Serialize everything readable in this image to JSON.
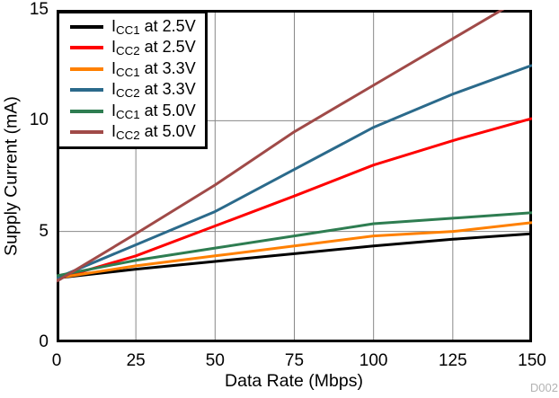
{
  "watermark": "D002",
  "chart_data": {
    "type": "line",
    "title": "",
    "xlabel": "Data Rate (Mbps)",
    "ylabel": "Supply Current (mA)",
    "xlim": [
      0,
      150
    ],
    "ylim": [
      0,
      15
    ],
    "xticks": [
      0,
      25,
      50,
      75,
      100,
      125,
      150
    ],
    "yticks": [
      0,
      5,
      10,
      15
    ],
    "grid": true,
    "grid_color": "#888888",
    "frame_color": "#000000",
    "legend_position": "top-left",
    "x": [
      0,
      25,
      50,
      75,
      100,
      125,
      150
    ],
    "series": [
      {
        "id": "icc1-2v5",
        "label": {
          "pre": "I",
          "sub": "CC1",
          "post": " at 2.5V"
        },
        "color": "#000000",
        "values": [
          2.9,
          3.3,
          3.65,
          4.0,
          4.35,
          4.65,
          4.9
        ]
      },
      {
        "id": "icc2-2v5",
        "label": {
          "pre": "I",
          "sub": "CC2",
          "post": " at 2.5V"
        },
        "color": "#ff0000",
        "values": [
          2.85,
          3.9,
          5.25,
          6.6,
          8.0,
          9.1,
          10.1
        ]
      },
      {
        "id": "icc1-3v3",
        "label": {
          "pre": "I",
          "sub": "CC1",
          "post": " at 3.3V"
        },
        "color": "#ff8000",
        "values": [
          2.9,
          3.45,
          3.9,
          4.35,
          4.8,
          5.0,
          5.4
        ]
      },
      {
        "id": "icc2-3v3",
        "label": {
          "pre": "I",
          "sub": "CC2",
          "post": " at 3.3V"
        },
        "color": "#2b6a8b",
        "values": [
          2.9,
          4.4,
          5.9,
          7.8,
          9.7,
          11.2,
          12.5
        ]
      },
      {
        "id": "icc1-5v0",
        "label": {
          "pre": "I",
          "sub": "CC1",
          "post": " at 5.0V"
        },
        "color": "#2e7d51",
        "values": [
          3.0,
          3.7,
          4.25,
          4.8,
          5.35,
          5.6,
          5.85
        ]
      },
      {
        "id": "icc2-5v0",
        "label": {
          "pre": "I",
          "sub": "CC2",
          "post": " at 5.0V"
        },
        "color": "#a04a48",
        "values": [
          2.75,
          4.9,
          7.1,
          9.5,
          11.6,
          13.7,
          15.8
        ],
        "note": "line exits top of plot (15 mA) at about 141 Mbps; final value clipped by axes"
      }
    ]
  }
}
